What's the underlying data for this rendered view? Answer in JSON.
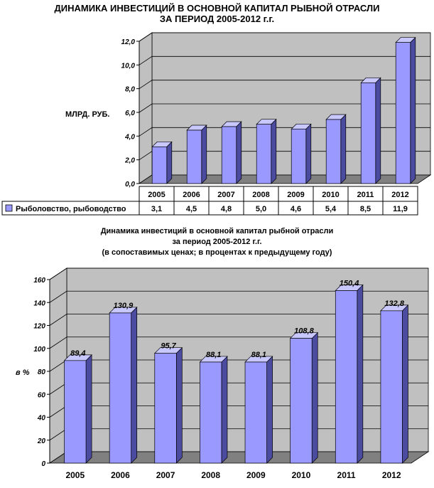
{
  "chart_data": [
    {
      "type": "bar",
      "title_lines": [
        "ДИНАМИКА ИНВЕСТИЦИЙ В ОСНОВНОЙ КАПИТАЛ РЫБНОЙ ОТРАСЛИ",
        "ЗА ПЕРИОД 2005-2012 г.г."
      ],
      "ylabel": "МЛРД. РУБ.",
      "categories": [
        "2005",
        "2006",
        "2007",
        "2008",
        "2009",
        "2010",
        "2011",
        "2012"
      ],
      "series": [
        {
          "name": "Рыболовство, рыбоводство",
          "values": [
            3.1,
            4.5,
            4.8,
            5.0,
            4.6,
            5.4,
            8.5,
            11.9
          ]
        }
      ],
      "value_labels": [
        "3,1",
        "4,5",
        "4,8",
        "5,0",
        "4,6",
        "5,4",
        "8,5",
        "11,9"
      ],
      "ylim": [
        0,
        12
      ],
      "ytick_labels": [
        "0,0",
        "2,0",
        "4,0",
        "6,0",
        "8,0",
        "10,0",
        "12,0"
      ],
      "grid": true,
      "legend": "data table below chart",
      "colors": {
        "bar": "#9999ff",
        "bar_side": "#4b4ba0",
        "bar_top": "#c8c8ff",
        "wall": "#c0c0c0",
        "floor": "#808080"
      }
    },
    {
      "type": "bar",
      "title_lines": [
        "Динамика инвестиций  в основной капитал рыбной отрасли",
        "за период 2005-2012 г.г.",
        "(в сопоставимых ценах; в процентах к предыдущему году)"
      ],
      "ylabel": "в %",
      "categories": [
        "2005",
        "2006",
        "2007",
        "2008",
        "2009",
        "2010",
        "2011",
        "2012"
      ],
      "series": [
        {
          "values": [
            89.4,
            130.9,
            95.7,
            88.1,
            88.1,
            108.8,
            150.4,
            132.8
          ]
        }
      ],
      "value_labels": [
        "89,4",
        "130,9",
        "95,7",
        "88,1",
        "88,1",
        "108,8",
        "150,4",
        "132,8"
      ],
      "ylim": [
        0,
        160
      ],
      "ytick_labels": [
        "0",
        "20",
        "40",
        "60",
        "80",
        "100",
        "120",
        "140",
        "160"
      ],
      "grid": true,
      "legend": "none",
      "colors": {
        "bar": "#9999ff",
        "bar_side": "#4b4ba0",
        "bar_top": "#c8c8ff",
        "wall": "#c0c0c0",
        "floor": "#808080"
      }
    }
  ]
}
